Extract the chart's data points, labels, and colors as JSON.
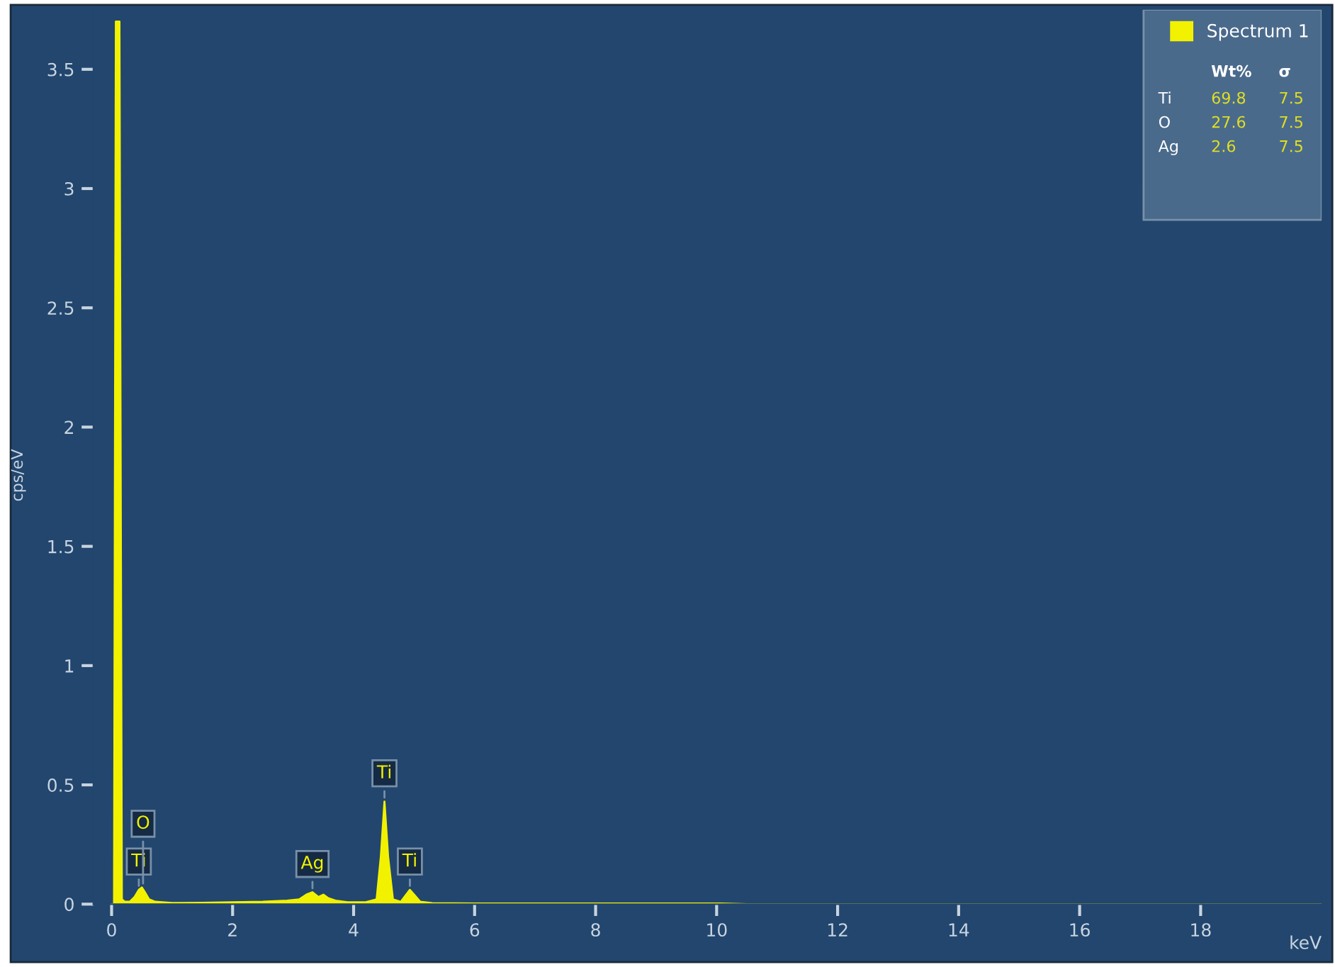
{
  "chart_data": {
    "type": "area",
    "xlabel": "keV",
    "ylabel": "cps/eV",
    "xlim": [
      -0.3,
      20
    ],
    "ylim": [
      0,
      3.75
    ],
    "xticks": [
      0,
      2,
      4,
      6,
      8,
      10,
      12,
      14,
      16,
      18
    ],
    "yticks": [
      0,
      0.5,
      1,
      1.5,
      2,
      2.5,
      3,
      3.5
    ],
    "legend": "top right",
    "grid": false,
    "series": [
      {
        "name": "Spectrum 1",
        "color": "#f2f200",
        "x": [
          0,
          0.04,
          0.07,
          0.13,
          0.17,
          0.22,
          0.3,
          0.38,
          0.45,
          0.5,
          0.55,
          0.62,
          0.72,
          1.0,
          1.5,
          2.0,
          2.5,
          2.9,
          3.1,
          3.22,
          3.32,
          3.42,
          3.5,
          3.58,
          3.7,
          3.9,
          4.2,
          4.38,
          4.45,
          4.51,
          4.57,
          4.65,
          4.78,
          4.87,
          4.93,
          5.0,
          5.1,
          5.3,
          6.0,
          8.0,
          10.0,
          10.5,
          20
        ],
        "values": [
          0,
          0,
          3.7,
          3.7,
          0.02,
          0.01,
          0.01,
          0.03,
          0.06,
          0.07,
          0.05,
          0.02,
          0.01,
          0.005,
          0.006,
          0.008,
          0.01,
          0.015,
          0.02,
          0.04,
          0.05,
          0.03,
          0.04,
          0.025,
          0.015,
          0.008,
          0.008,
          0.02,
          0.2,
          0.43,
          0.2,
          0.02,
          0.01,
          0.04,
          0.06,
          0.04,
          0.01,
          0.004,
          0.003,
          0.003,
          0.003,
          0,
          0
        ]
      }
    ],
    "annotations": [
      {
        "text": "Ti",
        "x": 0.45,
        "y": 0.06
      },
      {
        "text": "O",
        "x": 0.52,
        "y": 0.07
      },
      {
        "text": "Ag",
        "x": 3.32,
        "y": 0.05
      },
      {
        "text": "Ti",
        "x": 4.51,
        "y": 0.43
      },
      {
        "text": "Ti",
        "x": 4.93,
        "y": 0.06
      },
      "Wt%",
      "σ",
      "Ti",
      "69.8",
      "7.5",
      "O",
      "27.6",
      "7.5",
      "Ag",
      "2.6",
      "7.5"
    ]
  }
}
